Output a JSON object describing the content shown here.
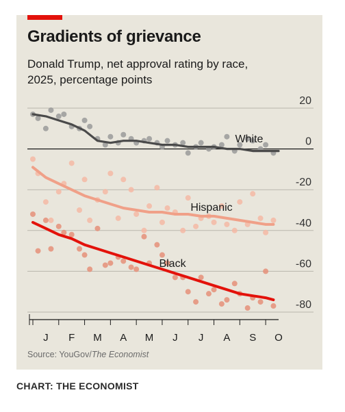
{
  "title": "Gradients of grievance",
  "subtitle_line1": "Donald Trump, net approval rating by race,",
  "subtitle_line2": "2025, percentage points",
  "source_prefix": "Source: YouGov/",
  "source_italic": "The Economist",
  "credit": "CHART: THE ECONOMIST",
  "colors": {
    "accent": "#e3120b",
    "white": "#4a4a4a",
    "white_dots": "#9a9a9a",
    "hispanic": "#f0a088",
    "hispanic_dots": "#f4b8a4",
    "black": "#e3120b",
    "black_dots": "#e58f79",
    "grid": "#b9b6ad",
    "zero": "#1a1a1a"
  },
  "chart_data": {
    "type": "scatter",
    "x_unit": "month of 2025 (1 = start of January)",
    "xlim": [
      1,
      10.5
    ],
    "ylim": [
      -80,
      20
    ],
    "y_ticks": [
      20,
      0,
      -20,
      -40,
      -60,
      -80
    ],
    "month_labels": [
      "J",
      "F",
      "M",
      "A",
      "M",
      "J",
      "J",
      "A",
      "S",
      "O"
    ],
    "series": [
      {
        "name": "White",
        "trend": [
          [
            1.0,
            17
          ],
          [
            1.5,
            16
          ],
          [
            2.0,
            14
          ],
          [
            2.5,
            12
          ],
          [
            3.0,
            9
          ],
          [
            3.5,
            4
          ],
          [
            4.0,
            3
          ],
          [
            4.5,
            4
          ],
          [
            5.0,
            4
          ],
          [
            5.5,
            3
          ],
          [
            6.0,
            2
          ],
          [
            6.5,
            2
          ],
          [
            7.0,
            1
          ],
          [
            7.5,
            1
          ],
          [
            8.0,
            1
          ],
          [
            8.5,
            0
          ],
          [
            9.0,
            0
          ],
          [
            9.5,
            -1
          ],
          [
            10.0,
            -1
          ],
          [
            10.5,
            -1
          ]
        ],
        "points": [
          [
            1.0,
            17
          ],
          [
            1.2,
            15
          ],
          [
            1.5,
            10
          ],
          [
            1.7,
            19
          ],
          [
            2.0,
            16
          ],
          [
            2.2,
            17
          ],
          [
            2.5,
            11
          ],
          [
            2.8,
            10
          ],
          [
            3.0,
            14
          ],
          [
            3.2,
            11
          ],
          [
            3.5,
            5
          ],
          [
            3.8,
            2
          ],
          [
            4.0,
            6
          ],
          [
            4.3,
            3
          ],
          [
            4.5,
            7
          ],
          [
            4.8,
            5
          ],
          [
            5.0,
            3
          ],
          [
            5.3,
            4
          ],
          [
            5.5,
            5
          ],
          [
            5.8,
            3
          ],
          [
            6.0,
            1
          ],
          [
            6.2,
            4
          ],
          [
            6.5,
            2
          ],
          [
            6.8,
            3
          ],
          [
            7.0,
            -2
          ],
          [
            7.3,
            1
          ],
          [
            7.5,
            3
          ],
          [
            7.8,
            0
          ],
          [
            8.0,
            1
          ],
          [
            8.3,
            2
          ],
          [
            8.5,
            6
          ],
          [
            8.8,
            -1
          ],
          [
            9.0,
            2
          ],
          [
            9.3,
            5
          ],
          [
            9.5,
            4
          ],
          [
            9.8,
            0
          ],
          [
            10.0,
            2
          ],
          [
            10.3,
            -2
          ]
        ]
      },
      {
        "name": "Hispanic",
        "trend": [
          [
            1.0,
            -9
          ],
          [
            1.5,
            -14
          ],
          [
            2.0,
            -17
          ],
          [
            2.5,
            -20
          ],
          [
            3.0,
            -23
          ],
          [
            3.5,
            -25
          ],
          [
            4.0,
            -27
          ],
          [
            4.5,
            -29
          ],
          [
            5.0,
            -30
          ],
          [
            5.5,
            -31
          ],
          [
            6.0,
            -31
          ],
          [
            6.5,
            -32
          ],
          [
            7.0,
            -32
          ],
          [
            7.5,
            -33
          ],
          [
            8.0,
            -33
          ],
          [
            8.5,
            -34
          ],
          [
            9.0,
            -35
          ],
          [
            9.5,
            -36
          ],
          [
            10.0,
            -37
          ],
          [
            10.3,
            -37
          ]
        ],
        "points": [
          [
            1.0,
            -5
          ],
          [
            1.2,
            -12
          ],
          [
            1.5,
            -26
          ],
          [
            1.7,
            -35
          ],
          [
            2.0,
            -21
          ],
          [
            2.2,
            -17
          ],
          [
            2.5,
            -7
          ],
          [
            2.8,
            -30
          ],
          [
            3.0,
            -15
          ],
          [
            3.2,
            -35
          ],
          [
            3.5,
            -25
          ],
          [
            3.8,
            -21
          ],
          [
            4.0,
            -12
          ],
          [
            4.3,
            -34
          ],
          [
            4.5,
            -15
          ],
          [
            4.8,
            -20
          ],
          [
            5.0,
            -32
          ],
          [
            5.3,
            -40
          ],
          [
            5.5,
            -28
          ],
          [
            5.8,
            -19
          ],
          [
            6.0,
            -36
          ],
          [
            6.2,
            -29
          ],
          [
            6.5,
            -31
          ],
          [
            6.8,
            -40
          ],
          [
            7.0,
            -24
          ],
          [
            7.3,
            -38
          ],
          [
            7.5,
            -34
          ],
          [
            7.8,
            -33
          ],
          [
            8.0,
            -36
          ],
          [
            8.3,
            -28
          ],
          [
            8.5,
            -37
          ],
          [
            8.8,
            -40
          ],
          [
            9.0,
            -26
          ],
          [
            9.3,
            -37
          ],
          [
            9.5,
            -22
          ],
          [
            9.8,
            -34
          ],
          [
            10.0,
            -41
          ],
          [
            10.3,
            -35
          ]
        ]
      },
      {
        "name": "Black",
        "trend": [
          [
            1.0,
            -36
          ],
          [
            1.5,
            -39
          ],
          [
            2.0,
            -42
          ],
          [
            2.5,
            -44
          ],
          [
            3.0,
            -47
          ],
          [
            3.5,
            -49
          ],
          [
            4.0,
            -51
          ],
          [
            4.5,
            -53
          ],
          [
            5.0,
            -55
          ],
          [
            5.5,
            -57
          ],
          [
            6.0,
            -59
          ],
          [
            6.5,
            -61
          ],
          [
            7.0,
            -63
          ],
          [
            7.5,
            -65
          ],
          [
            8.0,
            -67
          ],
          [
            8.5,
            -69
          ],
          [
            9.0,
            -71
          ],
          [
            9.5,
            -72
          ],
          [
            10.0,
            -73
          ],
          [
            10.3,
            -74
          ]
        ],
        "points": [
          [
            1.0,
            -32
          ],
          [
            1.2,
            -50
          ],
          [
            1.5,
            -35
          ],
          [
            1.7,
            -49
          ],
          [
            2.0,
            -38
          ],
          [
            2.2,
            -41
          ],
          [
            2.5,
            -42
          ],
          [
            2.8,
            -49
          ],
          [
            3.0,
            -52
          ],
          [
            3.2,
            -59
          ],
          [
            3.5,
            -39
          ],
          [
            3.8,
            -57
          ],
          [
            4.0,
            -56
          ],
          [
            4.3,
            -53
          ],
          [
            4.5,
            -55
          ],
          [
            4.8,
            -58
          ],
          [
            5.0,
            -59
          ],
          [
            5.3,
            -43
          ],
          [
            5.5,
            -56
          ],
          [
            5.8,
            -47
          ],
          [
            6.0,
            -52
          ],
          [
            6.2,
            -56
          ],
          [
            6.5,
            -63
          ],
          [
            6.8,
            -63
          ],
          [
            7.0,
            -70
          ],
          [
            7.3,
            -75
          ],
          [
            7.5,
            -63
          ],
          [
            7.8,
            -71
          ],
          [
            8.0,
            -69
          ],
          [
            8.3,
            -76
          ],
          [
            8.5,
            -74
          ],
          [
            8.8,
            -66
          ],
          [
            9.0,
            -71
          ],
          [
            9.3,
            -78
          ],
          [
            9.5,
            -73
          ],
          [
            9.8,
            -75
          ],
          [
            10.0,
            -60
          ],
          [
            10.3,
            -77
          ]
        ]
      }
    ],
    "labels": [
      "White",
      "Hispanic",
      "Black"
    ],
    "grid": true
  }
}
